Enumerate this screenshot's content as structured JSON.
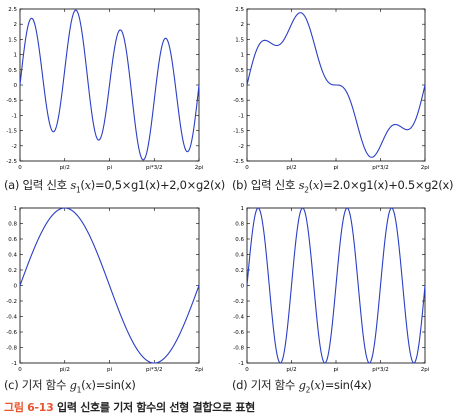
{
  "figure": {
    "number": "그림 6-13",
    "caption": "입력 신호를 기저 함수의 선형 결합으로 표현"
  },
  "panels": [
    {
      "letter": "(a)",
      "text": "입력 신호",
      "fn_name": "s",
      "fn_sub": "1",
      "expr": "=0,5×g1(x)+2,0×g2(x)"
    },
    {
      "letter": "(b)",
      "text": "입력 신호",
      "fn_name": "s",
      "fn_sub": "2",
      "expr": "=2.0×g1(x)+0.5×g2(x)"
    },
    {
      "letter": "(c)",
      "text": "기저 함수",
      "fn_name": "g",
      "fn_sub": "1",
      "expr": "=sin(x)"
    },
    {
      "letter": "(d)",
      "text": "기저 함수",
      "fn_name": "g",
      "fn_sub": "2",
      "expr": "=sin(4x)"
    }
  ],
  "colors": {
    "line": "#2b3fc4",
    "axis": "#000000",
    "caption_accent": "#e8542f"
  },
  "chart_data": [
    {
      "type": "line",
      "x_range": [
        0,
        6.283
      ],
      "ylim": [
        -2.5,
        2.5
      ],
      "y_ticks": [
        2.5,
        2,
        1.5,
        1,
        0.5,
        0,
        -0.5,
        -1,
        -1.5,
        -2,
        -2.5
      ],
      "x_ticks": [
        0,
        1.5708,
        3.1416,
        4.7124,
        6.2832
      ],
      "x_tick_labels": [
        "0",
        "pi/2",
        "pi",
        "pi*3/2",
        "2pi"
      ],
      "function": "0.5*sin(x)+2.0*sin(4x)",
      "coef_g1": 0.5,
      "coef_g2": 2.0
    },
    {
      "type": "line",
      "x_range": [
        0,
        6.283
      ],
      "ylim": [
        -2.5,
        2.5
      ],
      "y_ticks": [
        2.5,
        2,
        1.5,
        1,
        0.5,
        0,
        -0.5,
        -1,
        -1.5,
        -2,
        -2.5
      ],
      "x_ticks": [
        0,
        1.5708,
        3.1416,
        4.7124,
        6.2832
      ],
      "x_tick_labels": [
        "0",
        "pi/2",
        "pi",
        "pi*3/2",
        "2pi"
      ],
      "function": "2.0*sin(x)+0.5*sin(4x)",
      "coef_g1": 2.0,
      "coef_g2": 0.5
    },
    {
      "type": "line",
      "x_range": [
        0,
        6.283
      ],
      "ylim": [
        -1,
        1
      ],
      "y_ticks": [
        1,
        0.8,
        0.6,
        0.4,
        0.2,
        0,
        -0.2,
        -0.4,
        -0.6,
        -0.8,
        -1
      ],
      "x_ticks": [
        0,
        1.5708,
        3.1416,
        4.7124,
        6.2832
      ],
      "x_tick_labels": [
        "0",
        "pi/2",
        "pi",
        "pi*3/2",
        "2pi"
      ],
      "function": "sin(x)",
      "coef_g1": 1,
      "coef_g2": 0
    },
    {
      "type": "line",
      "x_range": [
        0,
        6.283
      ],
      "ylim": [
        -1,
        1
      ],
      "y_ticks": [
        1,
        0.8,
        0.6,
        0.4,
        0.2,
        0,
        -0.2,
        -0.4,
        -0.6,
        -0.8,
        -1
      ],
      "x_ticks": [
        0,
        1.5708,
        3.1416,
        4.7124,
        6.2832
      ],
      "x_tick_labels": [
        "0",
        "pi/2",
        "pi",
        "pi*3/2",
        "2pi"
      ],
      "function": "sin(4x)",
      "coef_g1": 0,
      "coef_g2": 1
    }
  ]
}
